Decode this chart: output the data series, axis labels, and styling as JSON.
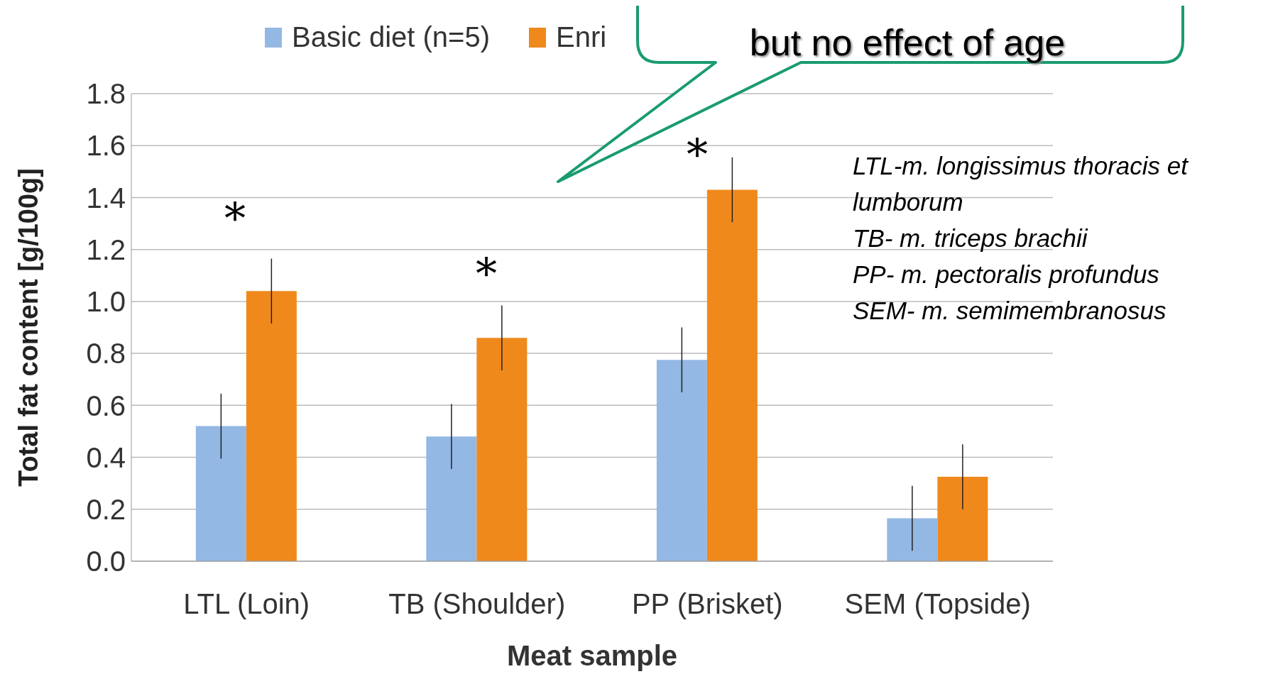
{
  "chart_data": {
    "type": "bar",
    "xlabel": "Meat sample",
    "ylabel": "Total fat content [g/100g]",
    "categories": [
      "LTL (Loin)",
      "TB (Shoulder)",
      "PP (Brisket)",
      "SEM (Topside)"
    ],
    "series": [
      {
        "name": "Basic diet (n=5)",
        "color": "#94b8e4",
        "values": [
          0.52,
          0.48,
          0.775,
          0.165
        ],
        "errors": [
          0.125,
          0.125,
          0.125,
          0.125
        ]
      },
      {
        "name": "Enri",
        "color": "#f0891c",
        "values": [
          1.04,
          0.86,
          1.43,
          0.325
        ],
        "errors": [
          0.125,
          0.125,
          0.125,
          0.125
        ]
      }
    ],
    "ylim": [
      0,
      1.8
    ],
    "yticks": [
      {
        "value": 0,
        "label": "0.0"
      },
      0.2,
      0.4,
      0.6,
      0.8,
      {
        "value": 1,
        "label": "1.0"
      },
      1.2,
      1.4,
      1.6,
      1.8
    ],
    "grid": "y",
    "legend": "top",
    "annotations": [
      "*",
      "*",
      "*",
      "but no effect of age",
      "LTL-m. longissimus thoracis et lumborum",
      "TB- m. triceps brachii",
      "PP- m. pectoralis profundus",
      "SEM- m. semimembranosus"
    ]
  }
}
